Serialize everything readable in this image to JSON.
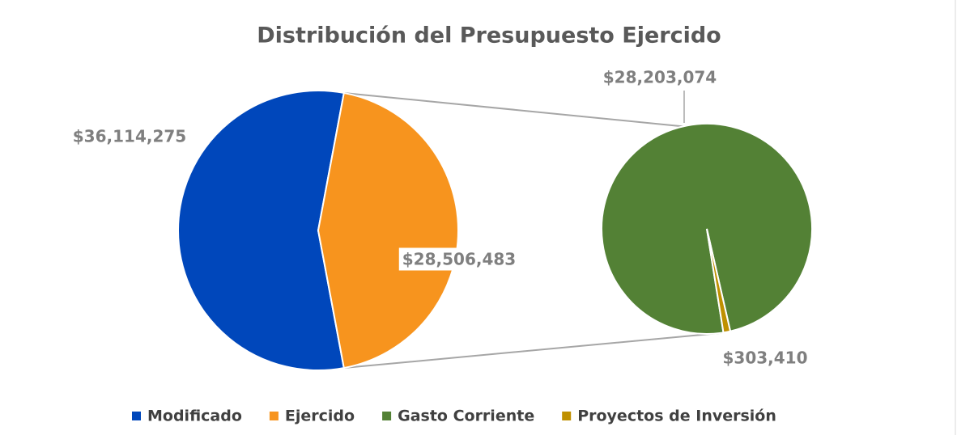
{
  "chart_data": [
    {
      "type": "pie",
      "title": "Distribución del Presupuesto Ejercido",
      "categories": [
        "Modificado",
        "Ejercido"
      ],
      "values": [
        36114275,
        28506483
      ],
      "value_labels": [
        "$36,114,275",
        "$28,506,483"
      ],
      "colors": [
        "#0047bb",
        "#f7941e"
      ]
    },
    {
      "type": "pie",
      "categories": [
        "Gasto Corriente",
        "Proyectos de Inversión"
      ],
      "values": [
        28203074,
        303410
      ],
      "value_labels": [
        "$28,203,074",
        "$303,410"
      ],
      "colors": [
        "#538135",
        "#bf9000"
      ]
    }
  ]
}
